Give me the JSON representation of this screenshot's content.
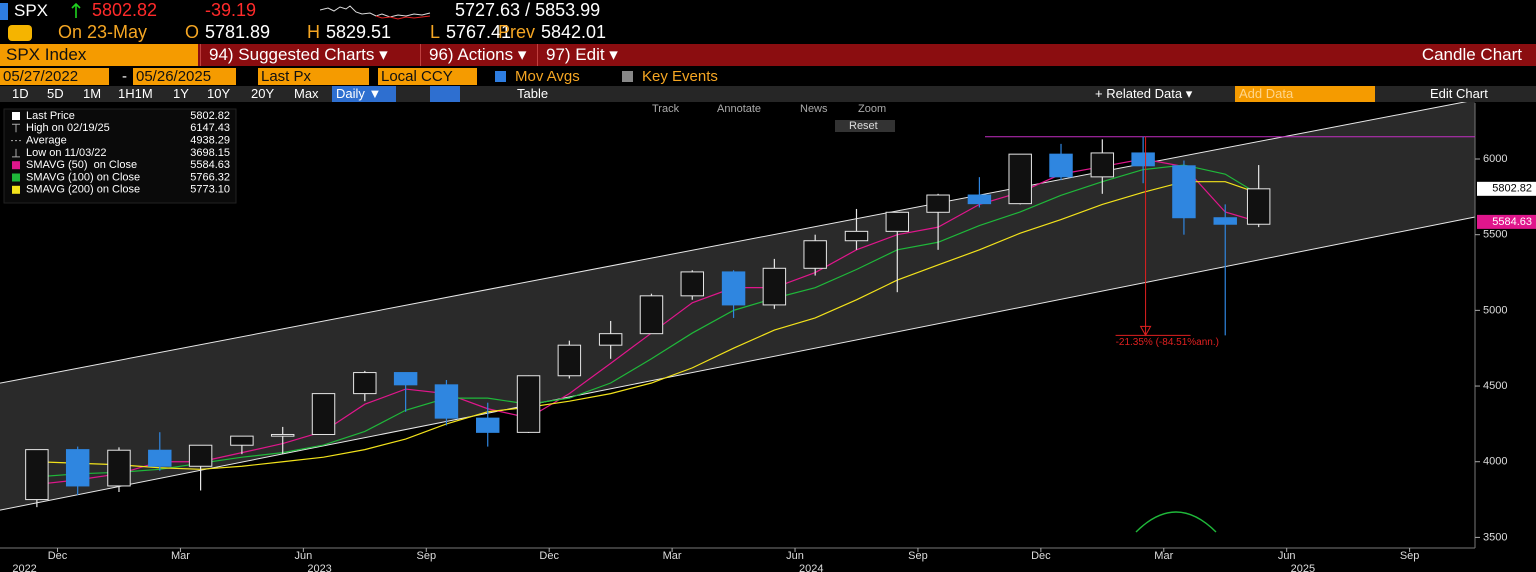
{
  "header": {
    "ticker": "SPX",
    "last": "5802.82",
    "change": "-39.19",
    "range": "5727.63 / 5853.99",
    "date": "On 23-May",
    "ohlc": [
      {
        "label": "O",
        "value": "5781.89"
      },
      {
        "label": "H",
        "value": "5829.51"
      },
      {
        "label": "L",
        "value": "5767.41"
      },
      {
        "label": "Prev",
        "value": "5842.01"
      }
    ]
  },
  "tabs": {
    "security": "SPX Index",
    "menus": [
      "94) Suggested Charts ▾",
      "96) Actions ▾",
      "97) Edit ▾"
    ],
    "view": "Candle Chart"
  },
  "settings": {
    "start": "05/27/2022",
    "end": "05/26/2025",
    "field": "Last Px",
    "currency": "Local CCY",
    "options": [
      "Mov Avgs",
      "Key Events"
    ]
  },
  "toolbar": {
    "periods": [
      "1D",
      "5D",
      "1M",
      "1H1M",
      "1Y",
      "10Y",
      "20Y",
      "Max"
    ],
    "frequency": "Daily ▼",
    "table": "Table",
    "related": "+ Related Data ▾",
    "add_data": "Add Data",
    "edit_chart": "Edit Chart"
  },
  "chart_tools": {
    "items": [
      "Track",
      "Annotate",
      "News",
      "Zoom"
    ],
    "reset": "Reset"
  },
  "chart_data": {
    "type": "candlestick",
    "x": [
      2022.875,
      2022.958,
      2023.042,
      2023.125,
      2023.208,
      2023.292,
      2023.375,
      2023.458,
      2023.542,
      2023.625,
      2023.708,
      2023.792,
      2023.875,
      2023.958,
      2024.042,
      2024.125,
      2024.208,
      2024.292,
      2024.375,
      2024.458,
      2024.542,
      2024.625,
      2024.708,
      2024.792,
      2024.875,
      2024.958,
      2025.042,
      2025.125,
      2025.208,
      2025.292,
      2025.36
    ],
    "open": [
      3750,
      4080,
      3840,
      4076,
      3970,
      4109,
      4169,
      4180,
      4450,
      4589,
      4508,
      4288,
      4194,
      4568,
      4770,
      4846,
      5096,
      5254,
      5036,
      5278,
      5460,
      5522,
      5648,
      5762,
      5705,
      6032,
      5882,
      6040,
      5955,
      5612,
      5569
    ],
    "high": [
      4080,
      4100,
      4095,
      4195,
      4110,
      4170,
      4230,
      4450,
      4600,
      4590,
      4540,
      4390,
      4570,
      4800,
      4930,
      5110,
      5265,
      5265,
      5340,
      5500,
      5670,
      5650,
      5770,
      5880,
      6020,
      6100,
      6130,
      6147,
      5990,
      5700,
      5960
    ],
    "low": [
      3700,
      3780,
      3800,
      3940,
      3810,
      4050,
      4050,
      4180,
      4400,
      4330,
      4240,
      4100,
      4190,
      4550,
      4680,
      4850,
      5070,
      4950,
      5010,
      5230,
      5400,
      5120,
      5400,
      5680,
      5700,
      5860,
      5770,
      5840,
      5500,
      4835,
      5550
    ],
    "close": [
      4080,
      3840,
      4076,
      3970,
      4109,
      4169,
      4180,
      4450,
      4589,
      4508,
      4288,
      4194,
      4568,
      4770,
      4846,
      5096,
      5254,
      5036,
      5278,
      5460,
      5522,
      5648,
      5762,
      5705,
      6032,
      5882,
      6040,
      5955,
      5612,
      5569,
      5803
    ],
    "up_color": "#e6e6e6",
    "down_color": "#2f86e0",
    "series": [
      {
        "name": "SMAVG (50)  on Close",
        "color": "#e0168c",
        "value_label": "5584.63",
        "values": [
          3850,
          3880,
          3920,
          4000,
          4000,
          4060,
          4120,
          4200,
          4380,
          4480,
          4450,
          4350,
          4290,
          4450,
          4650,
          4850,
          5050,
          5150,
          5150,
          5250,
          5400,
          5500,
          5550,
          5700,
          5780,
          5900,
          5950,
          6000,
          5950,
          5650,
          5584.63
        ]
      },
      {
        "name": "SMAVG (100) on Close",
        "color": "#1fb83a",
        "value_label": "5766.32",
        "values": [
          3900,
          3920,
          3930,
          3950,
          3990,
          4030,
          4060,
          4110,
          4200,
          4340,
          4420,
          4420,
          4380,
          4420,
          4520,
          4680,
          4850,
          5000,
          5080,
          5150,
          5270,
          5400,
          5450,
          5560,
          5650,
          5760,
          5850,
          5930,
          5960,
          5900,
          5766.32
        ]
      },
      {
        "name": "SMAVG (200) on Close",
        "color": "#f2e21b",
        "value_label": "5773.10",
        "values": [
          4000,
          3990,
          3980,
          3960,
          3950,
          3970,
          4000,
          4030,
          4080,
          4150,
          4250,
          4330,
          4360,
          4400,
          4450,
          4520,
          4620,
          4750,
          4870,
          4950,
          5070,
          5200,
          5300,
          5400,
          5510,
          5600,
          5700,
          5780,
          5850,
          5850,
          5773.1
        ]
      }
    ],
    "legend": [
      {
        "label": "Last Price",
        "value": "5802.82"
      },
      {
        "label": "High on 02/19/25",
        "value": "6147.43"
      },
      {
        "label": "Average",
        "value": "4938.29"
      },
      {
        "label": "Low on 11/03/22",
        "value": "3698.15"
      }
    ],
    "channel": {
      "x": [
        2022.8,
        2025.8
      ],
      "upper": [
        4519,
        6390
      ],
      "lower": [
        3680,
        5617
      ]
    },
    "high_line": 6147.43,
    "drawdown": {
      "label": "-21.35% (-84.51%ann.)",
      "x": 2025.13,
      "from": 6147.43,
      "to": 4835
    },
    "xlim": [
      2022.8,
      2025.8
    ],
    "ylim": [
      3430,
      6370
    ],
    "yticks": [
      3500,
      4000,
      4500,
      5000,
      5500,
      6000
    ],
    "xticks": [
      {
        "value": 2022.917,
        "label": "Dec"
      },
      {
        "value": 2023.167,
        "label": "Mar"
      },
      {
        "value": 2023.417,
        "label": "Jun"
      },
      {
        "value": 2023.667,
        "label": "Sep"
      },
      {
        "value": 2023.917,
        "label": "Dec"
      },
      {
        "value": 2024.167,
        "label": "Mar"
      },
      {
        "value": 2024.417,
        "label": "Jun"
      },
      {
        "value": 2024.667,
        "label": "Sep"
      },
      {
        "value": 2024.917,
        "label": "Dec"
      },
      {
        "value": 2025.167,
        "label": "Mar"
      },
      {
        "value": 2025.417,
        "label": "Jun"
      },
      {
        "value": 2025.667,
        "label": "Sep"
      }
    ],
    "year_ticks": [
      {
        "value": 2022.85,
        "label": "2022"
      },
      {
        "value": 2023.45,
        "label": "2023"
      },
      {
        "value": 2024.45,
        "label": "2024"
      },
      {
        "value": 2025.45,
        "label": "2025"
      }
    ]
  }
}
